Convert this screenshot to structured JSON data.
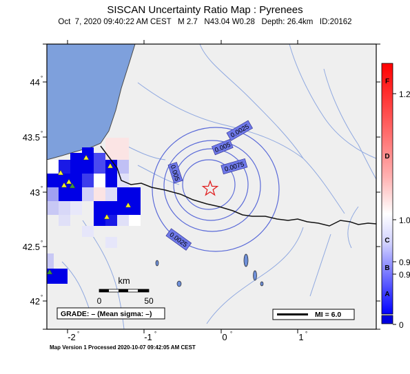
{
  "title": "SISCAN Uncertainty Ratio Map : Pyrenees",
  "subtitle": "Oct  7, 2020 09:40:22 AM CEST   M 2.7   N43.04 W0.28   Depth: 26.4km   ID:20162",
  "footer": "Map Version 1 Processed 2020-10-07 09:42:05 AM CEST",
  "map": {
    "lat_labels": [
      "44",
      "43.5",
      "43",
      "42.5",
      "42"
    ],
    "lon_labels": [
      "-2",
      "-1",
      "0",
      "1"
    ],
    "contour_labels": [
      "0.0025",
      "0.005",
      "0.0075",
      "0.005",
      "0.0025"
    ],
    "grade_text": "GRADE: – (Mean sigma: –)",
    "scalebar_unit": "km",
    "scalebar_ticks": [
      "0",
      "50"
    ],
    "mi_legend": "MI = 6.0",
    "epicenter": {
      "lat": 43.04,
      "lon": -0.28
    }
  },
  "colorbar": {
    "letters": [
      "F",
      "D",
      "C",
      "B",
      "A"
    ],
    "values": [
      "1.2",
      "1.0",
      "0.9",
      "0.9",
      "0"
    ],
    "colors": {
      "top": "#ff0000",
      "mid": "#ffffff",
      "low": "#0000ff"
    }
  },
  "colors": {
    "ocean": "#7ea0dc",
    "land": "#efefef",
    "contour": "#5a6ad8",
    "rivers": "#8fa8e0",
    "grid_blue": "#0000e6",
    "station": "#f2ef2a"
  }
}
